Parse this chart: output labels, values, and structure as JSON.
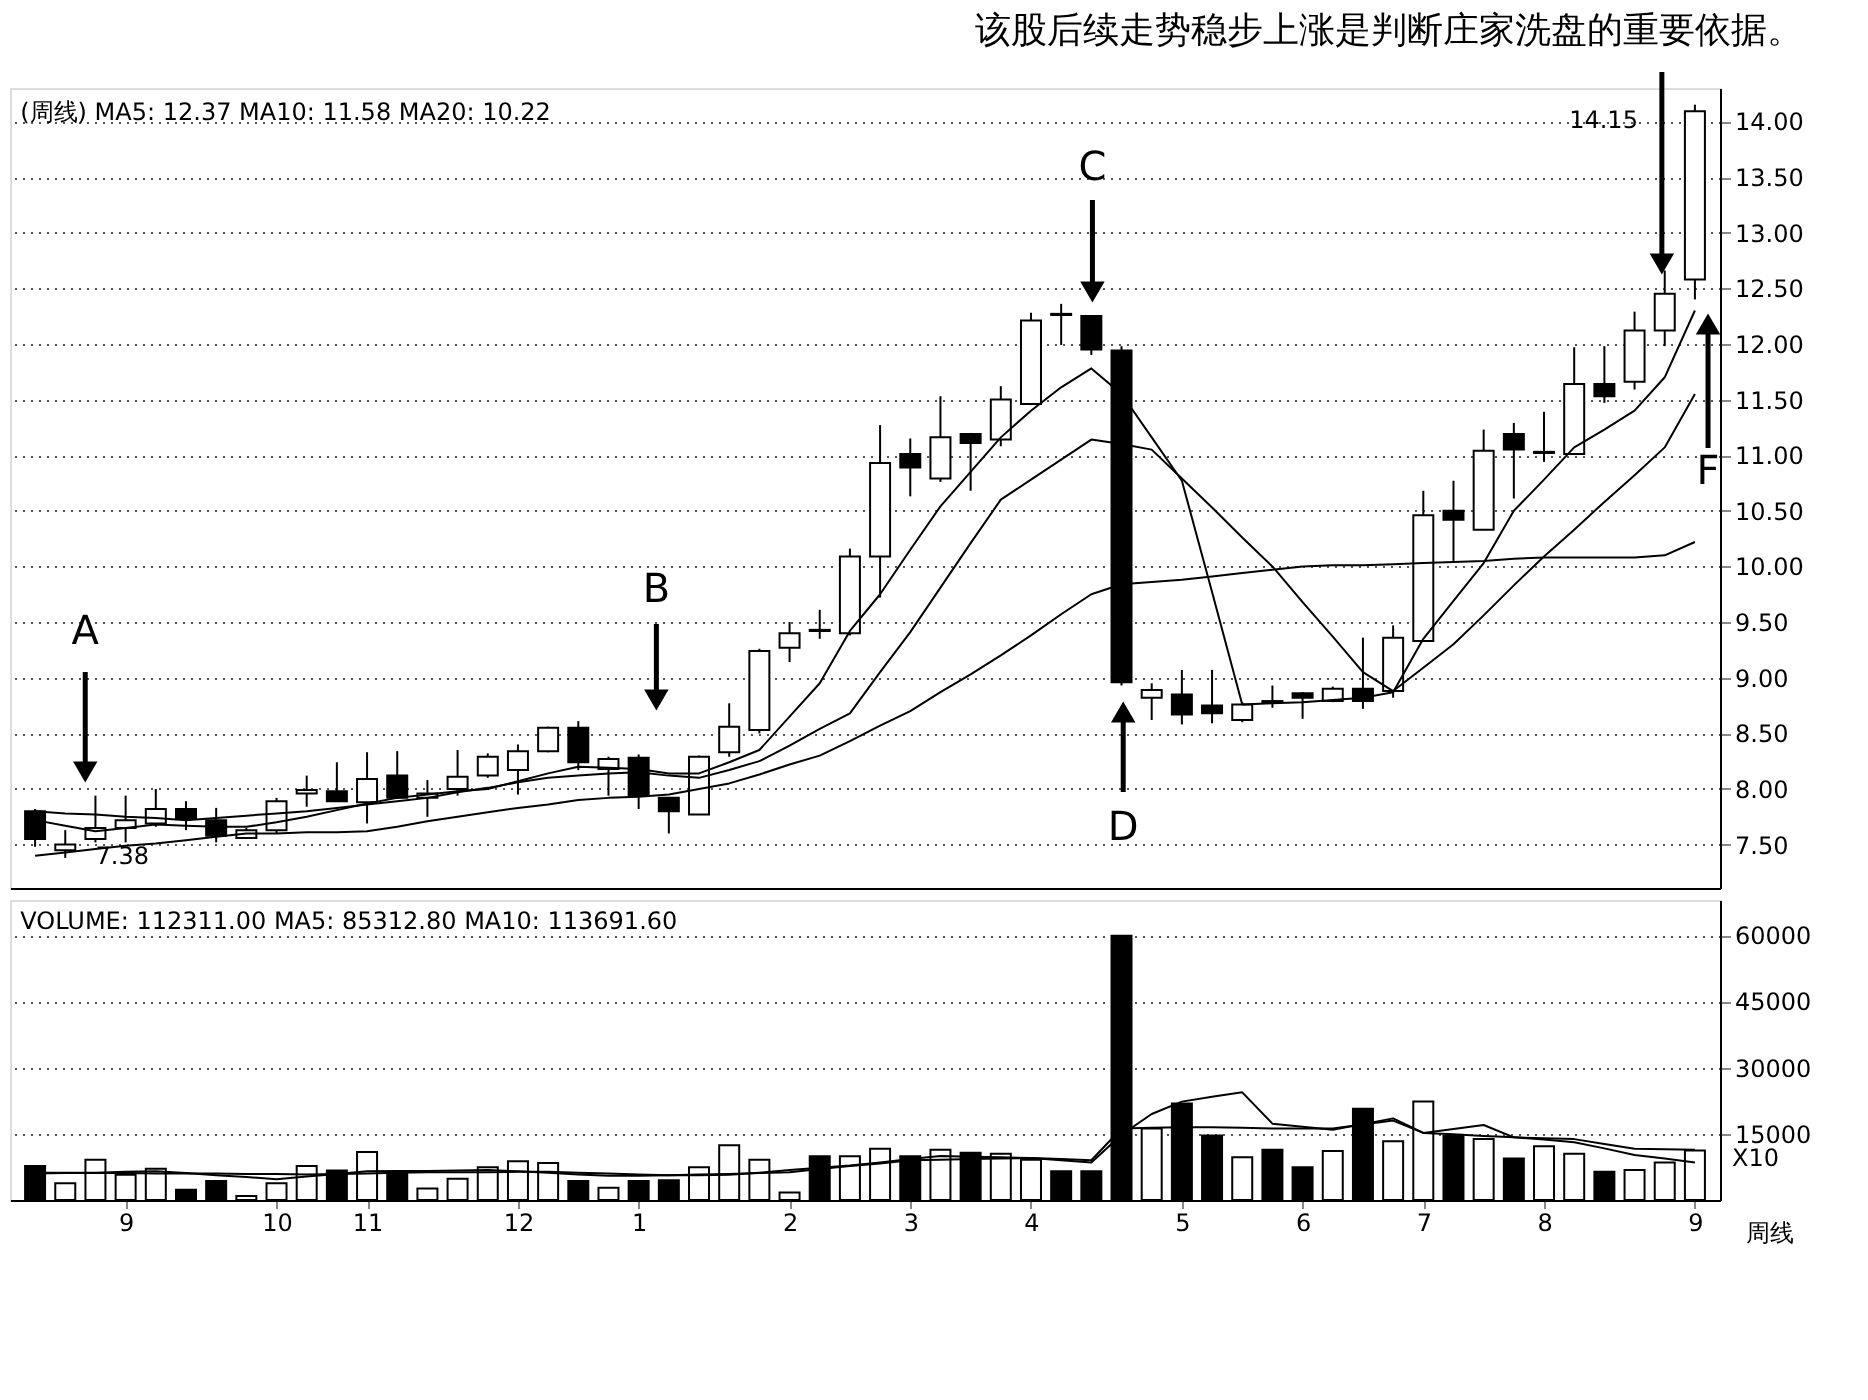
{
  "chart_data": [
    {
      "type": "candlestick",
      "title": "该股后续走势稳步上涨是判断庄家洗盘的重要依据。",
      "categories": [
        null,
        null,
        null,
        null,
        null,
        null,
        null,
        null,
        null,
        null,
        null,
        null,
        null,
        null,
        null,
        null,
        null,
        null,
        null,
        null,
        null,
        null,
        null,
        null,
        null,
        null,
        null,
        null,
        null,
        null,
        null,
        null,
        null,
        null,
        null,
        null,
        null,
        null,
        null,
        null,
        null,
        null,
        null,
        null,
        null,
        null,
        null,
        null,
        null,
        null,
        null,
        null,
        null,
        null,
        null,
        null
      ],
      "ohlc": [
        [
          7.8,
          7.82,
          7.48,
          7.55
        ],
        [
          7.45,
          7.63,
          7.38,
          7.5
        ],
        [
          7.55,
          7.94,
          7.52,
          7.65
        ],
        [
          7.65,
          7.94,
          7.52,
          7.72
        ],
        [
          7.69,
          8.0,
          7.66,
          7.82
        ],
        [
          7.82,
          7.89,
          7.63,
          7.73
        ],
        [
          7.72,
          7.83,
          7.52,
          7.58
        ],
        [
          7.56,
          7.65,
          7.55,
          7.63
        ],
        [
          7.63,
          7.92,
          7.6,
          7.89
        ],
        [
          7.96,
          8.12,
          7.84,
          7.99
        ],
        [
          7.98,
          8.24,
          7.89,
          7.89
        ],
        [
          7.88,
          8.33,
          7.69,
          8.09
        ],
        [
          8.12,
          8.34,
          7.92,
          7.92
        ],
        [
          7.92,
          8.08,
          7.75,
          7.96
        ],
        [
          8.0,
          8.35,
          7.94,
          8.11
        ],
        [
          8.12,
          8.32,
          8.1,
          8.29
        ],
        [
          8.17,
          8.4,
          7.95,
          8.34
        ],
        [
          8.34,
          8.56,
          8.33,
          8.55
        ],
        [
          8.55,
          8.61,
          8.17,
          8.24
        ],
        [
          8.18,
          8.29,
          7.94,
          8.27
        ],
        [
          8.28,
          8.31,
          7.82,
          7.94
        ],
        [
          7.92,
          7.92,
          7.6,
          7.8
        ],
        [
          7.77,
          8.3,
          7.77,
          8.29
        ],
        [
          8.33,
          8.77,
          8.29,
          8.56
        ],
        [
          8.53,
          9.26,
          8.5,
          9.24
        ],
        [
          9.27,
          9.5,
          9.14,
          9.4
        ],
        [
          9.42,
          9.61,
          9.35,
          9.43
        ],
        [
          9.4,
          10.16,
          9.38,
          10.09
        ],
        [
          10.09,
          11.27,
          9.72,
          10.93
        ],
        [
          11.01,
          11.15,
          10.63,
          10.89
        ],
        [
          10.79,
          11.53,
          10.76,
          11.16
        ],
        [
          11.19,
          11.2,
          10.68,
          11.11
        ],
        [
          11.14,
          11.62,
          11.08,
          11.5
        ],
        [
          11.46,
          12.28,
          11.45,
          12.21
        ],
        [
          12.26,
          12.36,
          11.99,
          12.27
        ],
        [
          12.25,
          12.26,
          11.9,
          11.95
        ],
        [
          11.94,
          11.98,
          8.93,
          8.96
        ],
        [
          8.82,
          8.95,
          8.62,
          8.89
        ],
        [
          8.85,
          9.07,
          8.58,
          8.67
        ],
        [
          8.75,
          9.07,
          8.59,
          8.68
        ],
        [
          8.62,
          8.78,
          8.6,
          8.76
        ],
        [
          8.78,
          8.93,
          8.73,
          8.79
        ],
        [
          8.86,
          8.87,
          8.63,
          8.82
        ],
        [
          8.79,
          8.92,
          8.78,
          8.9
        ],
        [
          8.9,
          9.36,
          8.72,
          8.79
        ],
        [
          8.88,
          9.47,
          8.82,
          9.36
        ],
        [
          9.33,
          10.68,
          9.33,
          10.46
        ],
        [
          10.5,
          10.77,
          10.05,
          10.42
        ],
        [
          10.33,
          11.23,
          10.33,
          11.04
        ],
        [
          11.19,
          11.29,
          10.61,
          11.05
        ],
        [
          11.02,
          11.39,
          10.94,
          11.03
        ],
        [
          11.01,
          11.97,
          11.01,
          11.64
        ],
        [
          11.64,
          11.98,
          11.47,
          11.53
        ],
        [
          11.66,
          12.29,
          11.59,
          12.12
        ],
        [
          12.12,
          12.66,
          11.98,
          12.45
        ],
        [
          12.58,
          14.15,
          12.4,
          14.09
        ]
      ],
      "series": [
        {
          "type": "line",
          "color": "#000000",
          "values": [
            7.72,
            7.67,
            7.62,
            7.65,
            7.68,
            7.67,
            7.66,
            7.66,
            7.7,
            7.75,
            7.81,
            7.87,
            7.92,
            7.95,
            7.98,
            8.0,
            8.07,
            8.14,
            8.2,
            8.19,
            8.18,
            8.14,
            8.14,
            8.24,
            8.35,
            8.65,
            8.95,
            9.42,
            9.75,
            10.15,
            10.54,
            10.85,
            11.16,
            11.4,
            11.61,
            11.78,
            11.55,
            11.16,
            10.77,
            9.77,
            8.76,
            8.77,
            8.78,
            8.8,
            8.82,
            8.87,
            9.35,
            9.69,
            10.03,
            10.5,
            10.78,
            11.07,
            11.23,
            11.4,
            11.7,
            12.3
          ]
        },
        {
          "type": "line",
          "color": "#000000",
          "values": [
            7.8,
            7.78,
            7.77,
            7.75,
            7.74,
            7.72,
            7.74,
            7.76,
            7.78,
            7.8,
            7.83,
            7.86,
            7.89,
            7.92,
            7.97,
            8.01,
            8.06,
            8.1,
            8.12,
            8.14,
            8.15,
            8.12,
            8.1,
            8.17,
            8.25,
            8.39,
            8.54,
            8.68,
            9.05,
            9.41,
            9.81,
            10.21,
            10.6,
            10.78,
            10.96,
            11.14,
            11.1,
            11.05,
            10.79,
            10.53,
            10.26,
            10.0,
            9.68,
            9.37,
            9.05,
            8.88,
            9.09,
            9.3,
            9.56,
            9.83,
            10.09,
            10.33,
            10.58,
            10.82,
            11.07,
            11.55
          ]
        },
        {
          "type": "line",
          "color": "#000000",
          "values": [
            7.4,
            7.43,
            7.46,
            7.49,
            7.51,
            7.54,
            7.57,
            7.6,
            7.6,
            7.61,
            7.61,
            7.62,
            7.66,
            7.71,
            7.75,
            7.79,
            7.83,
            7.86,
            7.9,
            7.92,
            7.93,
            7.95,
            8.0,
            8.05,
            8.13,
            8.22,
            8.3,
            8.43,
            8.57,
            8.7,
            8.87,
            9.03,
            9.2,
            9.38,
            9.57,
            9.75,
            9.84,
            9.86,
            9.88,
            9.91,
            9.94,
            9.97,
            10.0,
            10.01,
            10.01,
            10.02,
            10.03,
            10.04,
            10.05,
            10.07,
            10.08,
            10.08,
            10.08,
            10.08,
            10.1,
            10.22
          ]
        }
      ],
      "ylim": [
        7.11,
        14.3
      ],
      "yticks": [
        {
          "value": 7.5,
          "label": "7.50"
        },
        {
          "value": 8,
          "label": "8.00"
        },
        {
          "value": 8.5,
          "label": "8.50"
        },
        {
          "value": 9,
          "label": "9.00"
        },
        {
          "value": 9.5,
          "label": "9.50"
        },
        {
          "value": 10,
          "label": "10.00"
        },
        {
          "value": 10.5,
          "label": "10.50"
        },
        {
          "value": 11,
          "label": "11.00"
        },
        {
          "value": 11.5,
          "label": "11.50"
        },
        {
          "value": 12,
          "label": "12.00"
        },
        {
          "value": 12.5,
          "label": "12.50"
        },
        {
          "value": 13,
          "label": "13.00"
        },
        {
          "value": 13.5,
          "label": "13.50"
        },
        {
          "value": 14,
          "label": "14.00"
        }
      ],
      "tick_labels": "y",
      "grid": "y",
      "annotations": [
        "(周线) MA5: 12.37 MA10: 11.58 MA20: 10.22",
        "A",
        "B",
        "C",
        "D",
        "F",
        "14.15",
        "7.38"
      ]
    },
    {
      "type": "bar",
      "categories": [
        null,
        null,
        null,
        "9",
        null,
        null,
        null,
        null,
        "10",
        null,
        null,
        "11",
        null,
        null,
        null,
        null,
        "12",
        null,
        null,
        null,
        "1",
        null,
        null,
        null,
        null,
        "2",
        null,
        null,
        null,
        "3",
        null,
        null,
        null,
        "4",
        null,
        null,
        null,
        null,
        "5",
        null,
        null,
        null,
        "6",
        null,
        null,
        null,
        "7",
        null,
        null,
        null,
        "8",
        null,
        null,
        null,
        null,
        "9"
      ],
      "values": [
        7700,
        3800,
        9100,
        5700,
        7100,
        2300,
        4300,
        900,
        3800,
        7700,
        6700,
        10900,
        6200,
        2600,
        4800,
        7400,
        8800,
        8400,
        4300,
        2800,
        4300,
        4500,
        7400,
        12400,
        9100,
        1700,
        9900,
        9900,
        11600,
        9900,
        11400,
        10700,
        10500,
        9100,
        6500,
        6500,
        59900,
        16200,
        21900,
        14600,
        9700,
        11400,
        7400,
        11100,
        20700,
        13300,
        22300,
        14500,
        13800,
        9400,
        12200,
        10500,
        6400,
        6800,
        8500,
        11200
      ],
      "colors": [
        "#000000",
        "#ffffff",
        "#ffffff",
        "#ffffff",
        "#ffffff",
        "#000000",
        "#000000",
        "#ffffff",
        "#ffffff",
        "#ffffff",
        "#000000",
        "#ffffff",
        "#000000",
        "#ffffff",
        "#ffffff",
        "#ffffff",
        "#ffffff",
        "#ffffff",
        "#000000",
        "#ffffff",
        "#000000",
        "#000000",
        "#ffffff",
        "#ffffff",
        "#ffffff",
        "#ffffff",
        "#000000",
        "#ffffff",
        "#ffffff",
        "#000000",
        "#ffffff",
        "#000000",
        "#ffffff",
        "#ffffff",
        "#000000",
        "#000000",
        "#000000",
        "#ffffff",
        "#000000",
        "#000000",
        "#ffffff",
        "#000000",
        "#000000",
        "#ffffff",
        "#000000",
        "#ffffff",
        "#ffffff",
        "#000000",
        "#ffffff",
        "#000000",
        "#ffffff",
        "#ffffff",
        "#000000",
        "#ffffff",
        "#ffffff",
        "#ffffff"
      ],
      "series": [
        {
          "type": "line",
          "color": "#000000",
          "values": [
            6000,
            6100,
            6200,
            6400,
            6500,
            6100,
            5600,
            5200,
            4700,
            5300,
            5900,
            6500,
            6600,
            6600,
            6700,
            6800,
            6500,
            6200,
            5800,
            5500,
            5500,
            5600,
            5600,
            5700,
            6200,
            6800,
            7300,
            7800,
            8500,
            9300,
            10000,
            9800,
            9700,
            9500,
            9000,
            8500,
            14800,
            19500,
            22300,
            23400,
            24400,
            17300,
            16600,
            15900,
            17200,
            18500,
            15200,
            16100,
            17000,
            14200,
            13700,
            13100,
            11700,
            10200,
            9400,
            8500
          ]
        },
        {
          "type": "line",
          "color": "#000000",
          "values": [
            6200,
            6200,
            6100,
            6100,
            6000,
            6000,
            6000,
            5900,
            5900,
            5800,
            5900,
            6000,
            6200,
            6300,
            6300,
            6300,
            6400,
            6400,
            6200,
            6000,
            5800,
            5600,
            5800,
            5900,
            6100,
            6300,
            7000,
            7700,
            8300,
            9000,
            9100,
            9300,
            9400,
            9500,
            9300,
            9000,
            16200,
            16400,
            16500,
            16500,
            16400,
            16200,
            16200,
            16200,
            17100,
            18000,
            15200,
            14900,
            14500,
            14200,
            14000,
            13800,
            12700,
            11600,
            11500,
            11400
          ]
        }
      ],
      "ylim": [
        0,
        68000
      ],
      "yticks": [
        15000,
        30000,
        45000,
        60000
      ],
      "grid": "y",
      "annotations": [
        "VOLUME: 112311.00 MA5: 85312.80 MA10: 113691.60",
        "X10",
        "周线"
      ]
    }
  ]
}
